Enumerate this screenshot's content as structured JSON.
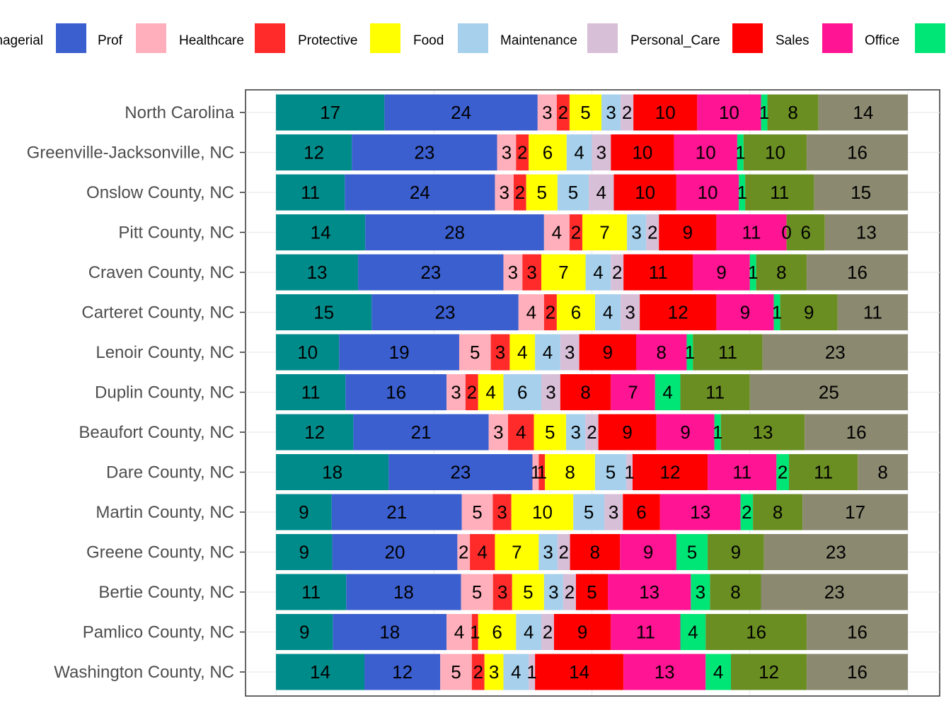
{
  "chart_data": {
    "type": "bar",
    "orientation": "horizontal",
    "stacked": true,
    "grid": true,
    "legend_position": "top",
    "series": [
      {
        "name": "Managerial",
        "color": "#008b8b"
      },
      {
        "name": "Prof",
        "color": "#3b5fcf"
      },
      {
        "name": "Healthcare",
        "color": "#ffafbb"
      },
      {
        "name": "Protective",
        "color": "#ff2b2b"
      },
      {
        "name": "Food",
        "color": "#ffff00"
      },
      {
        "name": "Maintenance",
        "color": "#a6d0ec"
      },
      {
        "name": "Personal_Care",
        "color": "#d8bfd8"
      },
      {
        "name": "Sales",
        "color": "#ff0000"
      },
      {
        "name": "Office",
        "color": "#ff1493"
      },
      {
        "name": "",
        "color": "#00e676"
      },
      {
        "name": "",
        "color": "#6b8e23"
      },
      {
        "name": "",
        "color": "#8b8970"
      }
    ],
    "categories": [
      "North Carolina",
      "Greenville-Jacksonville, NC",
      "Onslow County, NC",
      "Pitt County, NC",
      "Craven County, NC",
      "Carteret County, NC",
      "Lenoir County, NC",
      "Duplin County, NC",
      "Beaufort County, NC",
      "Dare County, NC",
      "Martin County, NC",
      "Greene County, NC",
      "Bertie County, NC",
      "Pamlico County, NC",
      "Washington County, NC"
    ],
    "values": [
      [
        17,
        24,
        3,
        2,
        5,
        3,
        2,
        10,
        10,
        1,
        8,
        14
      ],
      [
        12,
        23,
        3,
        2,
        6,
        4,
        3,
        10,
        10,
        1,
        10,
        16
      ],
      [
        11,
        24,
        3,
        2,
        5,
        5,
        4,
        10,
        10,
        1,
        11,
        15
      ],
      [
        14,
        28,
        4,
        2,
        7,
        3,
        2,
        9,
        11,
        0,
        6,
        13
      ],
      [
        13,
        23,
        3,
        3,
        7,
        4,
        2,
        11,
        9,
        1,
        8,
        16
      ],
      [
        15,
        23,
        4,
        2,
        6,
        4,
        3,
        12,
        9,
        1,
        9,
        11
      ],
      [
        10,
        19,
        5,
        3,
        4,
        4,
        3,
        9,
        8,
        1,
        11,
        23
      ],
      [
        11,
        16,
        3,
        2,
        4,
        6,
        3,
        8,
        7,
        4,
        11,
        25
      ],
      [
        12,
        21,
        3,
        4,
        5,
        3,
        2,
        9,
        9,
        1,
        13,
        16
      ],
      [
        18,
        23,
        1,
        1,
        8,
        5,
        1,
        12,
        11,
        2,
        11,
        8
      ],
      [
        9,
        21,
        5,
        3,
        10,
        5,
        3,
        6,
        13,
        2,
        8,
        17
      ],
      [
        9,
        20,
        2,
        4,
        7,
        3,
        2,
        8,
        9,
        5,
        9,
        23
      ],
      [
        11,
        18,
        5,
        3,
        5,
        3,
        2,
        5,
        13,
        3,
        8,
        23
      ],
      [
        9,
        18,
        4,
        1,
        6,
        4,
        2,
        9,
        11,
        4,
        16,
        16
      ],
      [
        14,
        12,
        5,
        2,
        3,
        4,
        1,
        14,
        13,
        4,
        12,
        16
      ]
    ]
  }
}
